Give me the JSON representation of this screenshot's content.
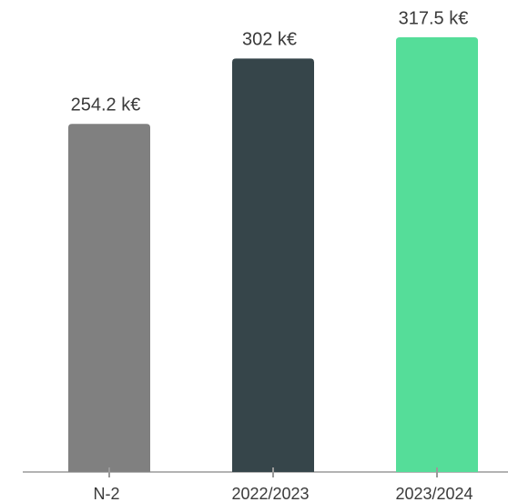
{
  "chart_data": {
    "type": "bar",
    "categories": [
      "N-2",
      "2022/2023",
      "2023/2024"
    ],
    "values": [
      254.2,
      302,
      317.5
    ],
    "value_labels": [
      "254.2 k€",
      "302 k€",
      "317.5 k€"
    ],
    "colors": [
      "#808080",
      "#36454a",
      "#55dd99"
    ]
  }
}
